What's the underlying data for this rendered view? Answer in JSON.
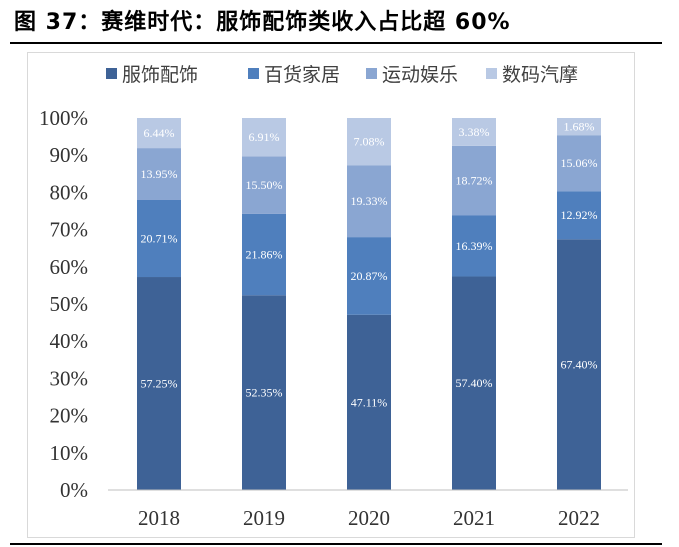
{
  "figure": {
    "title": "图 37：赛维时代：服饰配饰类收入占比超 60%"
  },
  "chart_data": {
    "type": "bar",
    "stacked": true,
    "categories": [
      "2018",
      "2019",
      "2020",
      "2021",
      "2022"
    ],
    "series": [
      {
        "name": "服饰配饰",
        "color": "#3e6296",
        "values": [
          57.25,
          52.35,
          47.11,
          57.4,
          67.4
        ],
        "labels": [
          "57.25%",
          "52.35%",
          "47.11%",
          "57.40%",
          "67.40%"
        ]
      },
      {
        "name": "百货家居",
        "color": "#4f7fbd",
        "values": [
          20.71,
          21.86,
          20.87,
          16.39,
          12.92
        ],
        "labels": [
          "20.71%",
          "21.86%",
          "20.87%",
          "16.39%",
          "12.92%"
        ]
      },
      {
        "name": "运动娱乐",
        "color": "#8aa6d2",
        "values": [
          13.95,
          15.5,
          19.33,
          18.72,
          15.06
        ],
        "labels": [
          "13.95%",
          "15.50%",
          "19.33%",
          "18.72%",
          "15.06%"
        ]
      },
      {
        "name": "数码汽摩",
        "color": "#b9c9e4",
        "values": [
          6.44,
          6.91,
          7.08,
          3.38,
          1.68
        ],
        "labels": [
          "6.44%",
          "6.91%",
          "7.08%",
          "3.38%",
          "1.68%"
        ]
      }
    ],
    "yticks": [
      "0%",
      "10%",
      "20%",
      "30%",
      "40%",
      "50%",
      "60%",
      "70%",
      "80%",
      "90%",
      "100%"
    ],
    "ylim": [
      0,
      100
    ],
    "grid": false,
    "legend": "top"
  }
}
